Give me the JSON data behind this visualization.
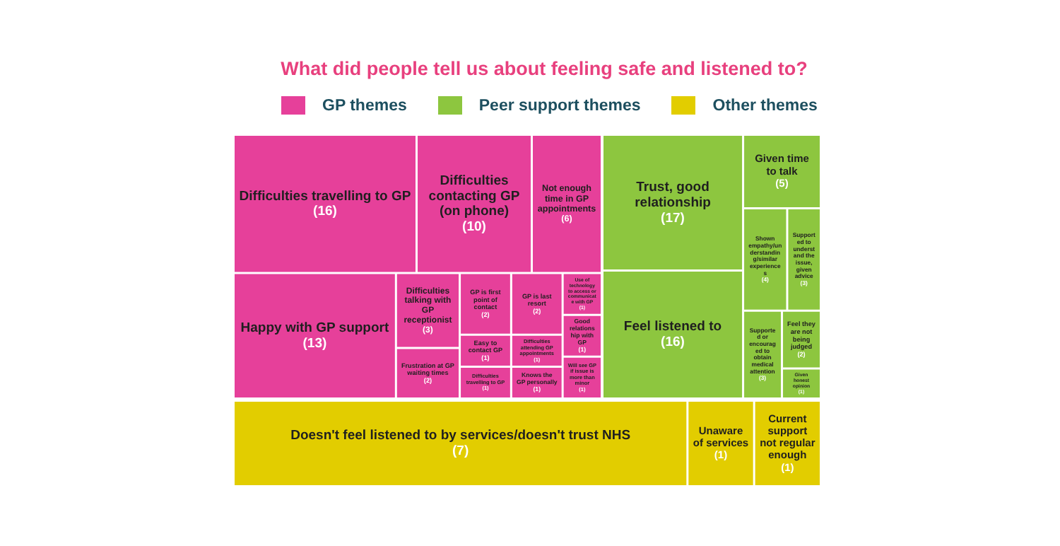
{
  "chart_data": {
    "type": "other",
    "title": "What did people tell us about feeling safe and listened to?",
    "legend": "top",
    "categories": [
      "Difficulties travelling to GP",
      "Difficulties contacting GP (on phone)",
      "Not enough time in GP appointments",
      "Happy with GP support",
      "Difficulties talking with GP receptionist",
      "Frustration at GP waiting times",
      "GP is first point of contact",
      "Easy to contact GP",
      "Difficulties travelling to GP",
      "GP is last resort",
      "Difficulties attending GP appointments",
      "Knows the GP personally",
      "Use of technology to access or communicate with GP",
      "Good relationship with GP",
      "Will see GP if issue is more than minor",
      "Trust, good relationship",
      "Feel listened to",
      "Given time to talk",
      "Shown empathy/understanding/similar experiences",
      "Supported to understand the issue, given advice",
      "Supported or encouraged to obtain medical attention",
      "Feel they are not being judged",
      "Given honest opinion",
      "Doesn't feel listened to by services/doesn't trust NHS",
      "Unaware of services",
      "Current support not regular enough"
    ],
    "series": [
      {
        "name": "GP themes",
        "color": "#e6409a",
        "values": [
          16,
          10,
          6,
          13,
          3,
          2,
          2,
          1,
          1,
          2,
          1,
          1,
          1,
          1,
          1,
          null,
          null,
          null,
          null,
          null,
          null,
          null,
          null,
          null,
          null,
          null
        ],
        "value_labels": [
          "(16)",
          "(10)",
          "(6)",
          "(13)",
          "(3)",
          "(2)",
          "(2)",
          "(1)",
          "(1)",
          "(2)",
          "(1)",
          "(1)",
          "(1)",
          "(1)",
          "(1)",
          null,
          null,
          null,
          null,
          null,
          null,
          null,
          null,
          null,
          null,
          null
        ]
      },
      {
        "name": "Peer support themes",
        "color": "#8dc63f",
        "values": [
          null,
          null,
          null,
          null,
          null,
          null,
          null,
          null,
          null,
          null,
          null,
          null,
          null,
          null,
          null,
          17,
          16,
          5,
          4,
          3,
          3,
          2,
          1,
          null,
          null,
          null
        ],
        "value_labels": [
          null,
          null,
          null,
          null,
          null,
          null,
          null,
          null,
          null,
          null,
          null,
          null,
          null,
          null,
          null,
          "(17)",
          "(16)",
          "(5)",
          "(4)",
          "(3)",
          "(3)",
          "(2)",
          "(1)",
          null,
          null,
          null
        ]
      },
      {
        "name": "Other themes",
        "color": "#e2cd00",
        "values": [
          null,
          null,
          null,
          null,
          null,
          null,
          null,
          null,
          null,
          null,
          null,
          null,
          null,
          null,
          null,
          null,
          null,
          null,
          null,
          null,
          null,
          null,
          null,
          7,
          1,
          1
        ],
        "value_labels": [
          null,
          null,
          null,
          null,
          null,
          null,
          null,
          null,
          null,
          null,
          null,
          null,
          null,
          null,
          null,
          null,
          null,
          null,
          null,
          null,
          null,
          null,
          null,
          "(7)",
          "(1)",
          "(1)"
        ]
      }
    ]
  }
}
